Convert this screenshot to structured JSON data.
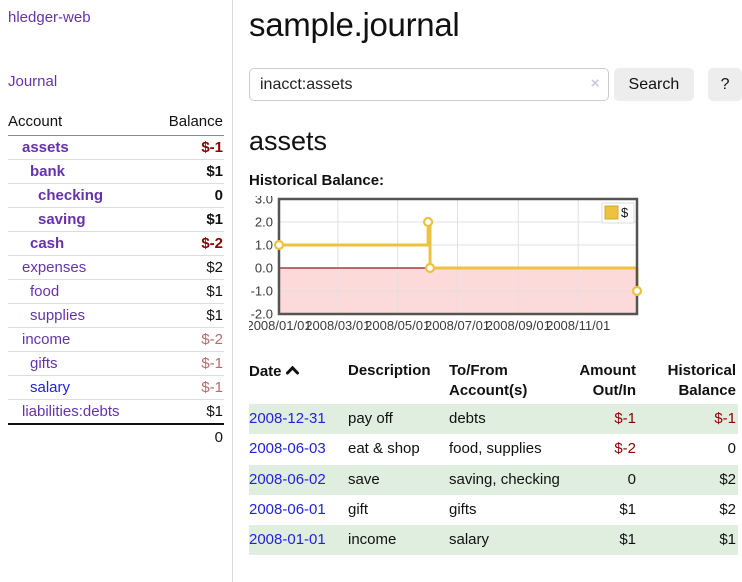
{
  "colors": {
    "link_purple": "#6633aa",
    "link_blue": "#2323d8",
    "negative_strong": "#8b0000",
    "negative_soft": "#b36b6b",
    "row_green": "#dfeedf",
    "chart_line": "#edc240",
    "chart_negative_fill": "#fcdada",
    "chart_zero_line": "#8b1c1c",
    "chart_border": "#545454",
    "chart_grid": "#e0e0e0"
  },
  "app": {
    "title": "hledger-web"
  },
  "sidebar": {
    "journal_link": "Journal",
    "accounts": {
      "headers": {
        "account": "Account",
        "balance": "Balance"
      },
      "rows": [
        {
          "name": "assets",
          "balance": "$-1",
          "indent": 1,
          "bold": true,
          "balance_style": "negative-strong",
          "link_style": "purple"
        },
        {
          "name": "bank",
          "balance": "$1",
          "indent": 2,
          "bold": true,
          "balance_style": "",
          "link_style": "purple"
        },
        {
          "name": "checking",
          "balance": "0",
          "indent": 3,
          "bold": true,
          "balance_style": "",
          "link_style": "purple"
        },
        {
          "name": "saving",
          "balance": "$1",
          "indent": 3,
          "bold": true,
          "balance_style": "",
          "link_style": "purple"
        },
        {
          "name": "cash",
          "balance": "$-2",
          "indent": 2,
          "bold": true,
          "balance_style": "negative-strong",
          "link_style": "purple"
        },
        {
          "name": "expenses",
          "balance": "$2",
          "indent": 1,
          "bold": false,
          "balance_style": "",
          "link_style": "purple"
        },
        {
          "name": "food",
          "balance": "$1",
          "indent": 2,
          "bold": false,
          "balance_style": "",
          "link_style": "purple"
        },
        {
          "name": "supplies",
          "balance": "$1",
          "indent": 2,
          "bold": false,
          "balance_style": "",
          "link_style": "purple"
        },
        {
          "name": "income",
          "balance": "$-2",
          "indent": 1,
          "bold": false,
          "balance_style": "negative-soft",
          "link_style": "purple"
        },
        {
          "name": "gifts",
          "balance": "$-1",
          "indent": 2,
          "bold": false,
          "balance_style": "negative-soft",
          "link_style": "purple"
        },
        {
          "name": "salary",
          "balance": "$-1",
          "indent": 2,
          "bold": false,
          "balance_style": "negative-soft",
          "link_style": "blue"
        },
        {
          "name": "liabilities:debts",
          "balance": "$1",
          "indent": 1,
          "bold": false,
          "balance_style": "",
          "link_style": "purple"
        }
      ],
      "total": "0"
    }
  },
  "main": {
    "title": "sample.journal",
    "search": {
      "value": "inacct:assets",
      "clear_icon": "×",
      "search_button": "Search",
      "help_button": "?"
    },
    "account_heading": "assets",
    "chart_label": "Historical Balance:",
    "register": {
      "headers": [
        "Date",
        "Description",
        "To/From Account(s)",
        "Amount Out/In",
        "Historical Balance"
      ],
      "sort_icon": "chevron-up",
      "rows": [
        {
          "date": "2008-12-31",
          "description": "pay off",
          "accounts": "debts",
          "amount": "$-1",
          "balance": "$-1"
        },
        {
          "date": "2008-06-03",
          "description": "eat & shop",
          "accounts": "food, supplies",
          "amount": "$-2",
          "balance": "0"
        },
        {
          "date": "2008-06-02",
          "description": "save",
          "accounts": "saving, checking",
          "amount": "0",
          "balance": "$2"
        },
        {
          "date": "2008-06-01",
          "description": "gift",
          "accounts": "gifts",
          "amount": "$1",
          "balance": "$2"
        },
        {
          "date": "2008-01-01",
          "description": "income",
          "accounts": "salary",
          "amount": "$1",
          "balance": "$1"
        }
      ]
    }
  },
  "chart_data": {
    "type": "line",
    "title": "Historical Balance:",
    "step": true,
    "series": [
      {
        "name": "$",
        "color": "#edc240",
        "points": [
          [
            "2008-01-01",
            1
          ],
          [
            "2008-06-01",
            2
          ],
          [
            "2008-06-03",
            0
          ],
          [
            "2008-12-31",
            -1
          ]
        ]
      }
    ],
    "xlim": [
      "2008-01-01",
      "2008-12-31"
    ],
    "ylim": [
      -2,
      3
    ],
    "x_ticks": [
      "2008/01/01",
      "2008/03/01",
      "2008/05/01",
      "2008/07/01",
      "2008/09/01",
      "2008/11/01"
    ],
    "y_ticks": [
      3.0,
      2.0,
      1.0,
      0.0,
      -1.0,
      -2.0
    ],
    "grid": true,
    "legend_position": "top-right",
    "negative_region_fill": "#fcdada",
    "zero_line_color": "#8b1c1c"
  }
}
